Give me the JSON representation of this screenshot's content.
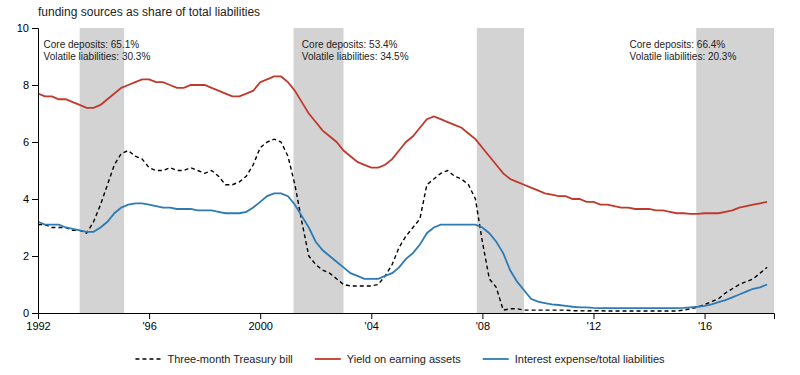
{
  "chart_data": {
    "type": "line",
    "title": "funding sources as share of total liabilities",
    "xlim": [
      1992,
      2018.5
    ],
    "ylim": [
      0,
      10
    ],
    "yticks": [
      0,
      2,
      4,
      6,
      8,
      10
    ],
    "xticks": [
      1992,
      {
        "value": 1996,
        "label": "'96"
      },
      2000,
      {
        "value": 2004,
        "label": "'04"
      },
      {
        "value": 2008,
        "label": "'08"
      },
      {
        "value": 2012,
        "label": "'12"
      },
      {
        "value": 2016,
        "label": "'16"
      }
    ],
    "grid": false,
    "legend": "bottom",
    "bands": {
      "color": "#d3d3d3",
      "values": [
        [
          1993.5,
          1995.1
        ],
        [
          2001.2,
          2003.0
        ],
        [
          2007.8,
          2009.5
        ],
        [
          2015.7,
          2018.5
        ]
      ]
    },
    "annotations": [
      {
        "x": 1992.2,
        "y": 9.55,
        "text": "Core deposits: 65.1%\nVolatile liabilities: 30.3%"
      },
      {
        "x": 2001.5,
        "y": 9.55,
        "text": "Core deposits: 53.4%\nVolatile liabilities: 34.5%"
      },
      {
        "x": 2013.3,
        "y": 9.55,
        "text": "Core deposits: 66.4%\nVolatile liabilities: 20.3%"
      }
    ],
    "x": [
      1992.0,
      1992.25,
      1992.5,
      1992.75,
      1993.0,
      1993.25,
      1993.5,
      1993.75,
      1994.0,
      1994.25,
      1994.5,
      1994.75,
      1995.0,
      1995.25,
      1995.5,
      1995.75,
      1996.0,
      1996.25,
      1996.5,
      1996.75,
      1997.0,
      1997.25,
      1997.5,
      1997.75,
      1998.0,
      1998.25,
      1998.5,
      1998.75,
      1999.0,
      1999.25,
      1999.5,
      1999.75,
      2000.0,
      2000.25,
      2000.5,
      2000.75,
      2001.0,
      2001.25,
      2001.5,
      2001.75,
      2002.0,
      2002.25,
      2002.5,
      2002.75,
      2003.0,
      2003.25,
      2003.5,
      2003.75,
      2004.0,
      2004.25,
      2004.5,
      2004.75,
      2005.0,
      2005.25,
      2005.5,
      2005.75,
      2006.0,
      2006.25,
      2006.5,
      2006.75,
      2007.0,
      2007.25,
      2007.5,
      2007.75,
      2008.0,
      2008.25,
      2008.5,
      2008.75,
      2009.0,
      2009.25,
      2009.5,
      2009.75,
      2010.0,
      2010.25,
      2010.5,
      2010.75,
      2011.0,
      2011.25,
      2011.5,
      2011.75,
      2012.0,
      2012.25,
      2012.5,
      2012.75,
      2013.0,
      2013.25,
      2013.5,
      2013.75,
      2014.0,
      2014.25,
      2014.5,
      2014.75,
      2015.0,
      2015.25,
      2015.5,
      2015.75,
      2016.0,
      2016.25,
      2016.5,
      2016.75,
      2017.0,
      2017.25,
      2017.5,
      2017.75,
      2018.0,
      2018.25
    ],
    "series": [
      {
        "name": "Three-month Treasury bill",
        "color": "#000000",
        "line_style": "dashed",
        "values": [
          3.1,
          3.1,
          3.0,
          3.0,
          3.0,
          2.9,
          2.9,
          2.8,
          3.2,
          3.8,
          4.5,
          5.2,
          5.6,
          5.7,
          5.5,
          5.4,
          5.1,
          5.0,
          5.0,
          5.1,
          5.0,
          5.0,
          5.1,
          5.0,
          4.9,
          5.0,
          4.8,
          4.5,
          4.5,
          4.6,
          4.8,
          5.2,
          5.8,
          6.0,
          6.1,
          6.0,
          5.5,
          4.5,
          3.2,
          2.0,
          1.7,
          1.5,
          1.4,
          1.2,
          1.0,
          0.95,
          0.95,
          0.95,
          0.95,
          1.0,
          1.3,
          1.7,
          2.3,
          2.7,
          3.0,
          3.3,
          4.5,
          4.7,
          4.9,
          5.0,
          4.8,
          4.7,
          4.5,
          4.0,
          2.5,
          1.2,
          0.9,
          0.1,
          0.15,
          0.15,
          0.1,
          0.1,
          0.1,
          0.1,
          0.1,
          0.1,
          0.1,
          0.08,
          0.08,
          0.07,
          0.08,
          0.08,
          0.07,
          0.07,
          0.07,
          0.07,
          0.07,
          0.07,
          0.07,
          0.07,
          0.07,
          0.07,
          0.07,
          0.1,
          0.15,
          0.2,
          0.3,
          0.4,
          0.5,
          0.7,
          0.85,
          1.0,
          1.1,
          1.2,
          1.4,
          1.6
        ]
      },
      {
        "name": "Yield on earning assets",
        "color": "#c0392b",
        "line_style": "solid",
        "values": [
          7.7,
          7.6,
          7.6,
          7.5,
          7.5,
          7.4,
          7.3,
          7.2,
          7.2,
          7.3,
          7.5,
          7.7,
          7.9,
          8.0,
          8.1,
          8.2,
          8.2,
          8.1,
          8.1,
          8.0,
          7.9,
          7.9,
          8.0,
          8.0,
          8.0,
          7.9,
          7.8,
          7.7,
          7.6,
          7.6,
          7.7,
          7.8,
          8.1,
          8.2,
          8.3,
          8.3,
          8.1,
          7.8,
          7.4,
          7.0,
          6.7,
          6.4,
          6.2,
          6.0,
          5.7,
          5.5,
          5.3,
          5.2,
          5.1,
          5.1,
          5.2,
          5.4,
          5.7,
          6.0,
          6.2,
          6.5,
          6.8,
          6.9,
          6.8,
          6.7,
          6.6,
          6.5,
          6.3,
          6.1,
          5.8,
          5.5,
          5.2,
          4.9,
          4.7,
          4.6,
          4.5,
          4.4,
          4.3,
          4.2,
          4.15,
          4.1,
          4.1,
          4.0,
          4.0,
          3.9,
          3.9,
          3.8,
          3.8,
          3.75,
          3.7,
          3.7,
          3.65,
          3.65,
          3.65,
          3.6,
          3.6,
          3.55,
          3.5,
          3.5,
          3.48,
          3.48,
          3.5,
          3.5,
          3.5,
          3.55,
          3.6,
          3.7,
          3.75,
          3.8,
          3.85,
          3.9
        ]
      },
      {
        "name": "Interest expense/total liabilities",
        "color": "#2c7bb6",
        "line_style": "solid",
        "values": [
          3.2,
          3.1,
          3.1,
          3.1,
          3.0,
          2.95,
          2.9,
          2.85,
          2.85,
          3.0,
          3.2,
          3.5,
          3.7,
          3.8,
          3.85,
          3.85,
          3.8,
          3.75,
          3.7,
          3.7,
          3.65,
          3.65,
          3.65,
          3.6,
          3.6,
          3.6,
          3.55,
          3.5,
          3.5,
          3.5,
          3.55,
          3.7,
          3.9,
          4.1,
          4.2,
          4.2,
          4.1,
          3.8,
          3.4,
          3.0,
          2.5,
          2.2,
          2.0,
          1.8,
          1.6,
          1.4,
          1.3,
          1.2,
          1.2,
          1.2,
          1.3,
          1.4,
          1.6,
          1.9,
          2.1,
          2.4,
          2.8,
          3.0,
          3.1,
          3.1,
          3.1,
          3.1,
          3.1,
          3.1,
          3.0,
          2.8,
          2.5,
          2.1,
          1.5,
          1.1,
          0.8,
          0.5,
          0.4,
          0.35,
          0.3,
          0.28,
          0.25,
          0.22,
          0.2,
          0.2,
          0.18,
          0.17,
          0.17,
          0.17,
          0.17,
          0.17,
          0.17,
          0.17,
          0.17,
          0.17,
          0.17,
          0.17,
          0.17,
          0.18,
          0.2,
          0.22,
          0.25,
          0.3,
          0.38,
          0.45,
          0.55,
          0.65,
          0.75,
          0.85,
          0.9,
          1.0
        ]
      }
    ]
  }
}
